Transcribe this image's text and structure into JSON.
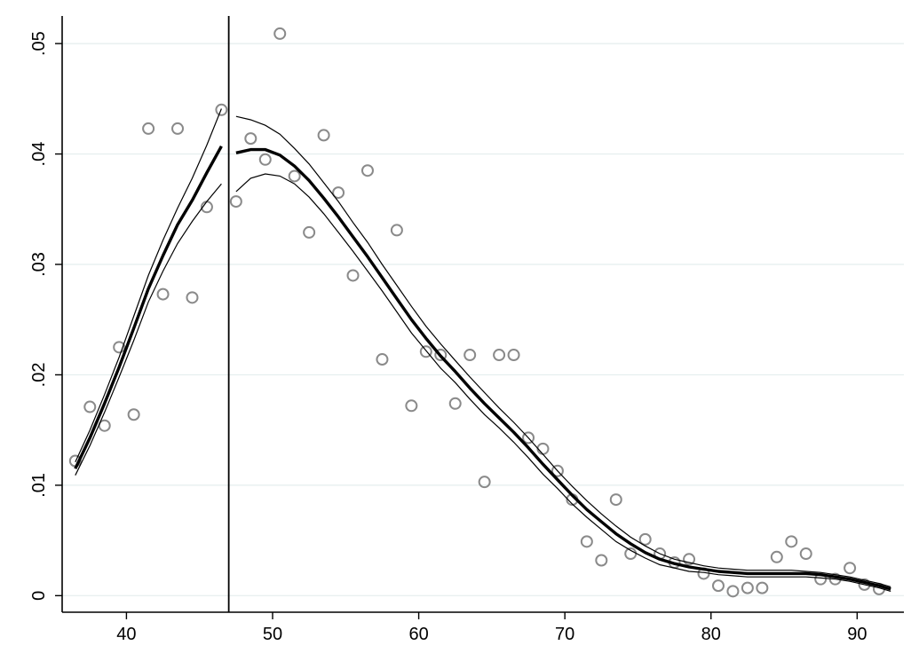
{
  "chart_data": {
    "type": "scatter",
    "title": "",
    "xlabel": "",
    "ylabel": "",
    "xlim": [
      35.6,
      93.2
    ],
    "ylim": [
      -0.0015,
      0.0525
    ],
    "x_ticks": [
      40,
      50,
      60,
      70,
      80,
      90
    ],
    "x_tick_labels": [
      "40",
      "50",
      "60",
      "70",
      "80",
      "90"
    ],
    "y_ticks": [
      0,
      0.01,
      0.02,
      0.03,
      0.04,
      0.05
    ],
    "y_tick_labels": [
      "0",
      ".01",
      ".02",
      ".03",
      ".04",
      ".05"
    ],
    "grid": "horizontal",
    "legend": "none",
    "cutoff_x": 47,
    "colors": {
      "points": "#8a8a8a",
      "fit": "#000000",
      "grid": "#e4eeee"
    },
    "scatter_points": {
      "x": [
        36.5,
        37.5,
        38.5,
        39.5,
        40.5,
        41.5,
        42.5,
        43.5,
        44.5,
        45.5,
        46.5,
        47.5,
        48.5,
        49.5,
        50.5,
        51.5,
        52.5,
        53.5,
        54.5,
        55.5,
        56.5,
        57.5,
        58.5,
        59.5,
        60.5,
        61.5,
        62.5,
        63.5,
        64.5,
        65.5,
        66.5,
        67.5,
        68.5,
        69.5,
        70.5,
        71.5,
        72.5,
        73.5,
        74.5,
        75.5,
        76.5,
        77.5,
        78.5,
        79.5,
        80.5,
        81.5,
        82.5,
        83.5,
        84.5,
        85.5,
        86.5,
        87.5,
        88.5,
        89.5,
        90.5,
        91.5
      ],
      "y": [
        0.0122,
        0.0171,
        0.0154,
        0.0225,
        0.0164,
        0.0423,
        0.0273,
        0.0423,
        0.027,
        0.0352,
        0.044,
        0.0357,
        0.0414,
        0.0395,
        0.0509,
        0.038,
        0.0329,
        0.0417,
        0.0365,
        0.029,
        0.0385,
        0.0214,
        0.0331,
        0.0172,
        0.0221,
        0.0218,
        0.0174,
        0.0218,
        0.0103,
        0.0218,
        0.0218,
        0.0143,
        0.0133,
        0.0113,
        0.0087,
        0.0049,
        0.0032,
        0.0087,
        0.0038,
        0.0051,
        0.0038,
        0.003,
        0.0033,
        0.002,
        0.0009,
        0.0004,
        0.0007,
        0.0007,
        0.0035,
        0.0049,
        0.0038,
        0.0015,
        0.0015,
        0.0025,
        0.001,
        0.0006
      ]
    },
    "series": [
      {
        "segment": "left",
        "x": [
          36.5,
          37.5,
          38.5,
          39.5,
          40.5,
          41.5,
          42.5,
          43.5,
          44.5,
          45.5,
          46.5
        ],
        "fit": [
          0.0115,
          0.0143,
          0.0174,
          0.0207,
          0.0242,
          0.0278,
          0.0308,
          0.0336,
          0.0358,
          0.0383,
          0.0407
        ],
        "upper": [
          0.0121,
          0.015,
          0.0182,
          0.0216,
          0.0253,
          0.029,
          0.0322,
          0.0351,
          0.0378,
          0.0408,
          0.0441
        ],
        "lower": [
          0.0109,
          0.0136,
          0.0166,
          0.0198,
          0.0231,
          0.0266,
          0.0294,
          0.0319,
          0.0339,
          0.0357,
          0.0373
        ]
      },
      {
        "segment": "right",
        "x": [
          47.5,
          48.5,
          49.5,
          50.5,
          51.5,
          52.5,
          53.5,
          54.5,
          55.5,
          56.5,
          57.5,
          58.5,
          59.5,
          60.5,
          61.5,
          62.5,
          63.5,
          64.5,
          65.5,
          66.5,
          67.5,
          68.5,
          69.5,
          70.5,
          71.5,
          72.5,
          73.5,
          74.5,
          75.5,
          76.5,
          77.5,
          78.5,
          79.5,
          80.5,
          81.5,
          82.5,
          83.5,
          84.5,
          85.5,
          86.5,
          87.5,
          88.5,
          89.5,
          90.5,
          91.5,
          92.3
        ],
        "fit": [
          0.0401,
          0.0404,
          0.0404,
          0.0399,
          0.0389,
          0.0376,
          0.036,
          0.0343,
          0.0325,
          0.0307,
          0.0288,
          0.0269,
          0.025,
          0.0233,
          0.0217,
          0.0203,
          0.0188,
          0.0174,
          0.0161,
          0.0148,
          0.0134,
          0.0119,
          0.0105,
          0.0091,
          0.0078,
          0.0067,
          0.0056,
          0.0047,
          0.0039,
          0.0033,
          0.0029,
          0.0026,
          0.0024,
          0.0022,
          0.0021,
          0.002,
          0.002,
          0.002,
          0.002,
          0.002,
          0.0019,
          0.0017,
          0.0015,
          0.0012,
          0.0009,
          0.0006
        ],
        "upper": [
          0.0434,
          0.0431,
          0.0426,
          0.0418,
          0.0405,
          0.0391,
          0.0374,
          0.0357,
          0.0338,
          0.032,
          0.03,
          0.0281,
          0.0262,
          0.0244,
          0.0228,
          0.0213,
          0.0198,
          0.0184,
          0.017,
          0.0157,
          0.0143,
          0.0128,
          0.0113,
          0.0099,
          0.0086,
          0.0074,
          0.0063,
          0.0053,
          0.0045,
          0.0038,
          0.0033,
          0.003,
          0.0027,
          0.0025,
          0.0024,
          0.0023,
          0.0023,
          0.0023,
          0.0023,
          0.0022,
          0.0021,
          0.0019,
          0.0017,
          0.0014,
          0.0011,
          0.0008
        ],
        "lower": [
          0.0366,
          0.0378,
          0.0382,
          0.038,
          0.0373,
          0.0361,
          0.0346,
          0.0329,
          0.0312,
          0.0294,
          0.0276,
          0.0257,
          0.0238,
          0.0222,
          0.0206,
          0.0193,
          0.0178,
          0.0164,
          0.0152,
          0.0139,
          0.0125,
          0.011,
          0.0097,
          0.0083,
          0.0071,
          0.006,
          0.0049,
          0.0041,
          0.0034,
          0.0028,
          0.0025,
          0.0022,
          0.0021,
          0.0019,
          0.0018,
          0.0017,
          0.0017,
          0.0017,
          0.0017,
          0.0017,
          0.0016,
          0.0015,
          0.0013,
          0.001,
          0.0007,
          0.0004
        ]
      }
    ]
  }
}
